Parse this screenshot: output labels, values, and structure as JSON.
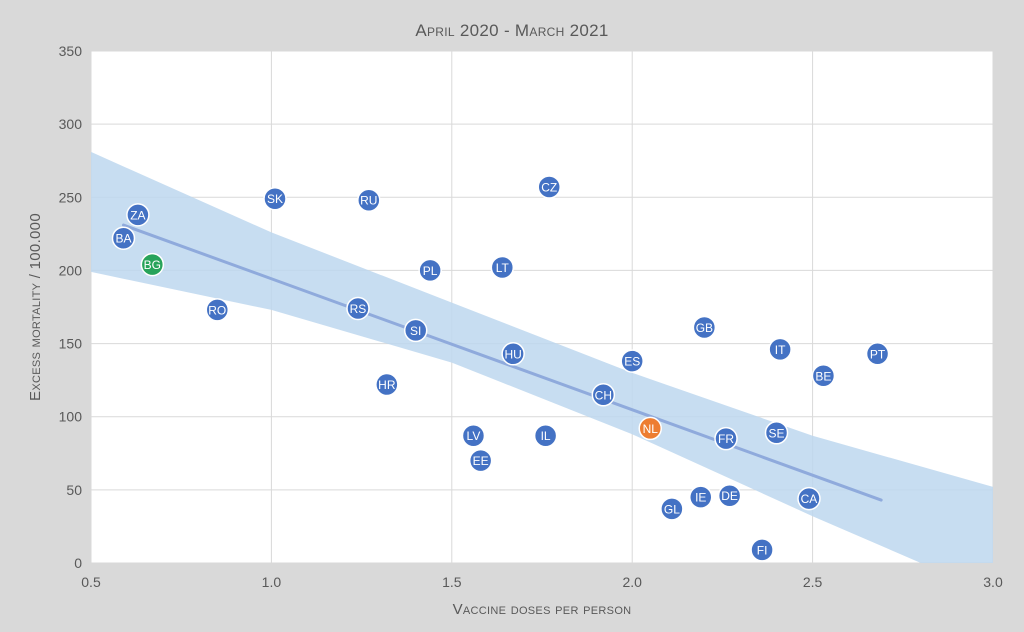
{
  "chart_data": {
    "type": "scatter",
    "title": "April 2020 - March 2021",
    "xlabel": "Vaccine doses per person",
    "ylabel": "Excess mortality / 100.000",
    "xlim": [
      0.5,
      3.0
    ],
    "ylim": [
      0,
      350
    ],
    "xticks": [
      0.5,
      1.0,
      1.5,
      2.0,
      2.5,
      3.0
    ],
    "xtick_labels": [
      "0.5",
      "1.0",
      "1.5",
      "2.0",
      "2.5",
      "3.0"
    ],
    "yticks": [
      0,
      50,
      100,
      150,
      200,
      250,
      300,
      350
    ],
    "ytick_labels": [
      "0",
      "50",
      "100",
      "150",
      "200",
      "250",
      "300",
      "350"
    ],
    "grid": true,
    "colors": {
      "default": "#4472c4",
      "BG": "#27a35a",
      "NL": "#ed7d31",
      "trendline": "#8faadc",
      "band": "#bdd7ee"
    },
    "points": [
      {
        "label": "ZA",
        "x": 0.63,
        "y": 238
      },
      {
        "label": "BA",
        "x": 0.59,
        "y": 222
      },
      {
        "label": "BG",
        "x": 0.67,
        "y": 204
      },
      {
        "label": "RO",
        "x": 0.85,
        "y": 173
      },
      {
        "label": "SK",
        "x": 1.01,
        "y": 249
      },
      {
        "label": "RU",
        "x": 1.27,
        "y": 248
      },
      {
        "label": "RS",
        "x": 1.24,
        "y": 174
      },
      {
        "label": "SI",
        "x": 1.4,
        "y": 159
      },
      {
        "label": "HR",
        "x": 1.32,
        "y": 122
      },
      {
        "label": "PL",
        "x": 1.44,
        "y": 200
      },
      {
        "label": "LT",
        "x": 1.64,
        "y": 202
      },
      {
        "label": "HU",
        "x": 1.67,
        "y": 143
      },
      {
        "label": "LV",
        "x": 1.56,
        "y": 87
      },
      {
        "label": "EE",
        "x": 1.58,
        "y": 70
      },
      {
        "label": "IL",
        "x": 1.76,
        "y": 87
      },
      {
        "label": "CZ",
        "x": 1.77,
        "y": 257
      },
      {
        "label": "ES",
        "x": 2.0,
        "y": 138
      },
      {
        "label": "CH",
        "x": 1.92,
        "y": 115
      },
      {
        "label": "NL",
        "x": 2.05,
        "y": 92
      },
      {
        "label": "GB",
        "x": 2.2,
        "y": 161
      },
      {
        "label": "GL",
        "x": 2.11,
        "y": 37
      },
      {
        "label": "IE",
        "x": 2.19,
        "y": 45
      },
      {
        "label": "FR",
        "x": 2.26,
        "y": 85
      },
      {
        "label": "DE",
        "x": 2.27,
        "y": 46
      },
      {
        "label": "FI",
        "x": 2.36,
        "y": 9
      },
      {
        "label": "SE",
        "x": 2.4,
        "y": 89
      },
      {
        "label": "IT",
        "x": 2.41,
        "y": 146
      },
      {
        "label": "BE",
        "x": 2.53,
        "y": 128
      },
      {
        "label": "CA",
        "x": 2.49,
        "y": 44
      },
      {
        "label": "PT",
        "x": 2.68,
        "y": 143
      }
    ],
    "trendline": {
      "x": [
        0.59,
        2.69
      ],
      "y": [
        231,
        43
      ]
    },
    "confidence_band": {
      "upper": [
        [
          0.5,
          281
        ],
        [
          1.0,
          226
        ],
        [
          1.5,
          178
        ],
        [
          2.0,
          130
        ],
        [
          2.5,
          87
        ],
        [
          3.0,
          52
        ]
      ],
      "lower": [
        [
          0.5,
          199
        ],
        [
          1.0,
          173
        ],
        [
          1.5,
          137
        ],
        [
          2.0,
          88
        ],
        [
          2.5,
          32
        ],
        [
          2.8,
          0
        ],
        [
          3.0,
          0
        ]
      ]
    }
  }
}
